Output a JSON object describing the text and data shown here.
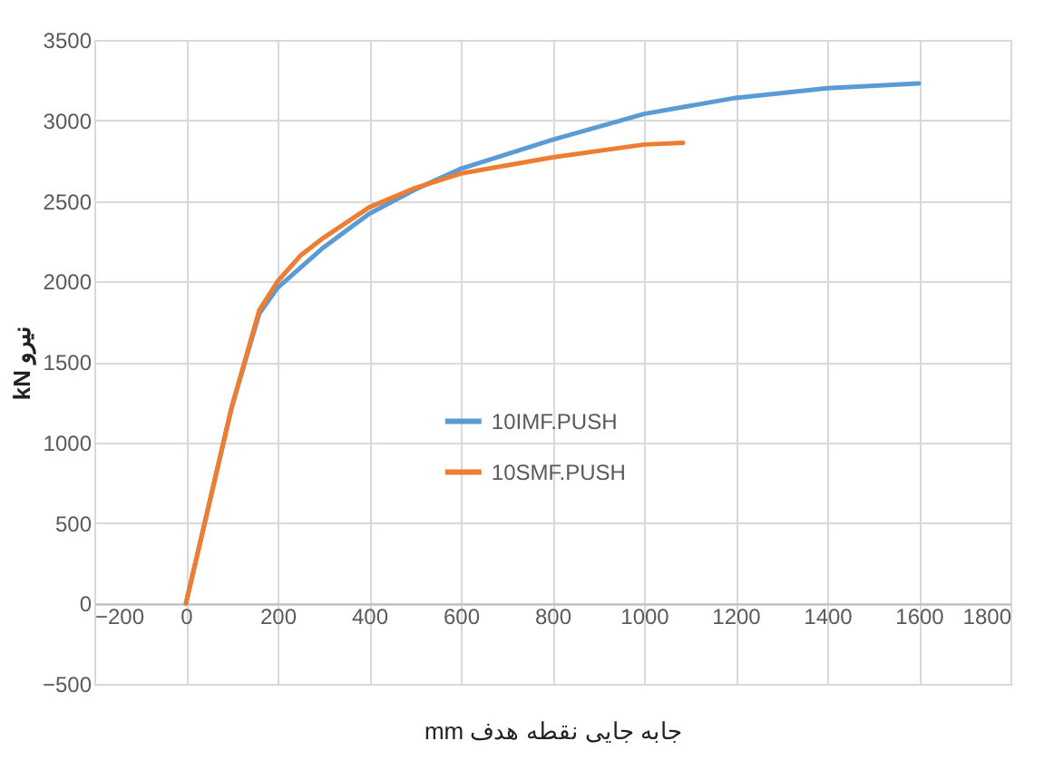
{
  "chart_data": {
    "type": "line",
    "xlabel": "mm جابه جایی نقطه هدف",
    "ylabel": "kN نیرو",
    "xlim": [
      -200,
      1800
    ],
    "xticks": [
      -200,
      0,
      200,
      400,
      600,
      800,
      1000,
      1200,
      1400,
      1600,
      1800
    ],
    "ylim": [
      -500,
      3500
    ],
    "yticks": [
      -500,
      0,
      500,
      1000,
      1500,
      2000,
      2500,
      3000,
      3500
    ],
    "grid": true,
    "legend": "center",
    "series": [
      {
        "name": "10IMF.PUSH",
        "color": "#5b9bd5",
        "x": [
          0,
          50,
          100,
          160,
          200,
          300,
          400,
          500,
          600,
          800,
          1000,
          1200,
          1400,
          1600
        ],
        "values": [
          0,
          610,
          1220,
          1800,
          1960,
          2210,
          2420,
          2570,
          2700,
          2880,
          3040,
          3140,
          3200,
          3230
        ]
      },
      {
        "name": "10SMF.PUSH",
        "color": "#ed7d31",
        "x": [
          0,
          50,
          100,
          160,
          200,
          250,
          300,
          400,
          500,
          600,
          800,
          1000,
          1085
        ],
        "values": [
          0,
          610,
          1220,
          1820,
          2000,
          2160,
          2270,
          2460,
          2580,
          2670,
          2770,
          2850,
          2860
        ]
      }
    ]
  }
}
